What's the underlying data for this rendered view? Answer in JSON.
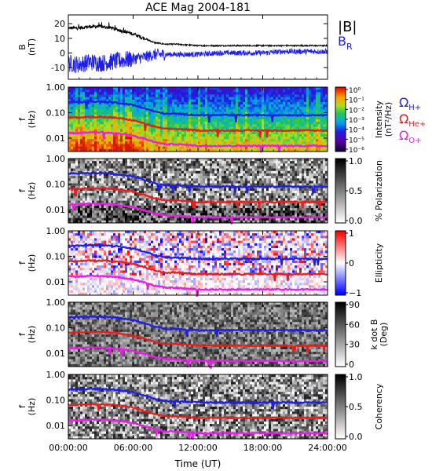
{
  "title": "ACE Mag 2004-181",
  "colors": {
    "b_total": "#000000",
    "b_r": "#1e1ee6",
    "h_plus": "#1e1ee6",
    "he_plus": "#e61e1e",
    "o_plus": "#e61ee6"
  },
  "chart_data": [
    {
      "type": "line",
      "panel": "magnetic-field",
      "ylabel": "B\n(nT)",
      "ylim": [
        -18,
        26
      ],
      "yticks": [
        20,
        10,
        0,
        -10
      ],
      "x_hours": [
        0,
        1,
        2,
        3,
        4,
        5,
        6,
        7,
        8,
        9,
        10,
        12,
        14,
        16,
        18,
        20,
        22,
        24
      ],
      "series": [
        {
          "name": "|B|",
          "color": "#000000",
          "values": [
            17,
            17,
            18,
            18,
            17,
            15,
            13,
            10,
            7,
            6,
            6,
            5,
            5,
            5,
            5,
            5,
            5,
            5
          ]
        },
        {
          "name": "B_R",
          "color": "#1e1ee6",
          "values": [
            -7,
            -8,
            -6,
            -7,
            -6,
            -5,
            -4,
            -3,
            -1,
            -1,
            -1,
            -1,
            0,
            0,
            0,
            1,
            1,
            1
          ]
        }
      ],
      "legend": [
        "|B|",
        "B_R"
      ],
      "legend_position": "right"
    },
    {
      "type": "heatmap",
      "panel": "intensity",
      "ylabel": "f\n(Hz)",
      "yscale": "log",
      "ylim": [
        0.003,
        1.0
      ],
      "yticks": [
        "1.00",
        "0.10",
        "0.01"
      ],
      "colorbar_label": "Intensity\n(nT²/Hz)",
      "colorbar_ticks": [
        "10⁰",
        "10⁻¹",
        "10⁻²",
        "10⁻³",
        "10⁻⁴",
        "10⁻⁵",
        "10⁻⁶"
      ],
      "colormap": "rainbow",
      "legend": [
        "ΩH+",
        "ΩHe+",
        "ΩO+"
      ]
    },
    {
      "type": "heatmap",
      "panel": "polarization",
      "ylabel": "f\n(Hz)",
      "yscale": "log",
      "ylim": [
        0.003,
        1.0
      ],
      "yticks": [
        "1.00",
        "0.10",
        "0.01"
      ],
      "colorbar_label": "% Polarization",
      "colorbar_ticks": [
        "1.0",
        "0.5",
        "0.0"
      ],
      "colormap": "gray"
    },
    {
      "type": "heatmap",
      "panel": "ellipticity",
      "ylabel": "f\n(Hz)",
      "yscale": "log",
      "ylim": [
        0.003,
        1.0
      ],
      "yticks": [
        "1.00",
        "0.10",
        "0.01"
      ],
      "colorbar_label": "Ellipticity",
      "colorbar_ticks": [
        "1",
        "0",
        "−1"
      ],
      "colormap": "blue-white-red"
    },
    {
      "type": "heatmap",
      "panel": "k-dot-b",
      "ylabel": "f\n(Hz)",
      "yscale": "log",
      "ylim": [
        0.003,
        1.0
      ],
      "yticks": [
        "1.00",
        "0.10",
        "0.01"
      ],
      "colorbar_label": "k dot B\n(Deg)",
      "colorbar_ticks": [
        "90",
        "60",
        "30",
        "0"
      ],
      "colormap": "gray"
    },
    {
      "type": "heatmap",
      "panel": "coherency",
      "ylabel": "f\n(Hz)",
      "yscale": "log",
      "ylim": [
        0.003,
        1.0
      ],
      "yticks": [
        "1.00",
        "0.10",
        "0.01"
      ],
      "colorbar_label": "Coherency",
      "colorbar_ticks": [
        "1.0",
        "0.5",
        "0.0"
      ],
      "colormap": "gray"
    }
  ],
  "gyro_lines": {
    "x_hours": [
      0,
      1,
      2,
      3,
      4,
      5,
      6,
      7,
      8,
      9,
      10,
      12,
      14,
      16,
      18,
      20,
      22,
      24
    ],
    "series": [
      {
        "name": "ΩH+",
        "color": "#1e1ee6",
        "values": [
          0.26,
          0.26,
          0.27,
          0.27,
          0.26,
          0.23,
          0.2,
          0.15,
          0.11,
          0.09,
          0.09,
          0.08,
          0.08,
          0.08,
          0.08,
          0.08,
          0.08,
          0.08
        ]
      },
      {
        "name": "ΩHe+",
        "color": "#e61e1e",
        "values": [
          0.065,
          0.065,
          0.068,
          0.068,
          0.065,
          0.058,
          0.05,
          0.038,
          0.028,
          0.023,
          0.023,
          0.02,
          0.02,
          0.02,
          0.02,
          0.02,
          0.02,
          0.02
        ]
      },
      {
        "name": "ΩO+",
        "color": "#e61ee6",
        "values": [
          0.016,
          0.016,
          0.017,
          0.017,
          0.016,
          0.0145,
          0.0125,
          0.0095,
          0.007,
          0.0058,
          0.0058,
          0.005,
          0.005,
          0.005,
          0.005,
          0.005,
          0.005,
          0.005
        ]
      }
    ]
  },
  "xaxis": {
    "label": "Time (UT)",
    "ticks": [
      "00:00:00",
      "06:00:00",
      "12:00:00",
      "18:00:00",
      "24:00:00"
    ],
    "tick_hours": [
      0,
      6,
      12,
      18,
      24
    ]
  }
}
